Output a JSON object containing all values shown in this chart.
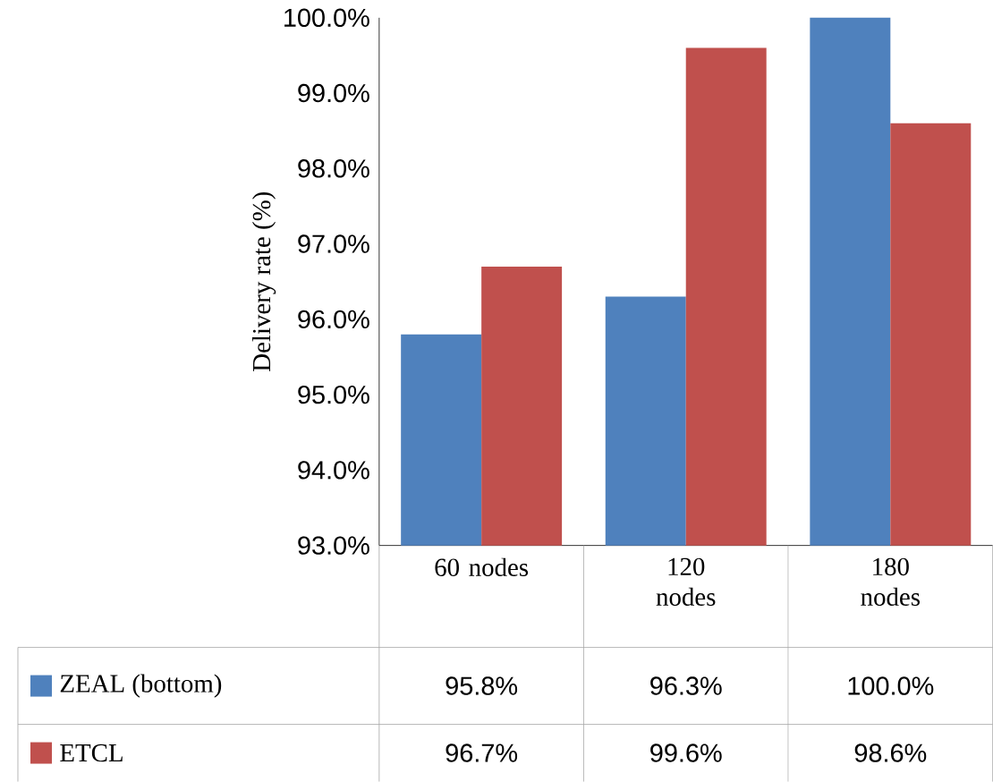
{
  "chart_data": {
    "type": "bar",
    "ylabel": "Delivery rate (%)",
    "categories": [
      "60 nodes",
      "120 nodes",
      "180 nodes"
    ],
    "series": [
      {
        "name": "ZEAL (bottom)",
        "color": "#4f81bd",
        "values": [
          95.8,
          96.3,
          100.0
        ],
        "value_labels": [
          "95.8%",
          "96.3%",
          "100.0%"
        ]
      },
      {
        "name": "ETCL",
        "color": "#c0504d",
        "values": [
          96.7,
          99.6,
          98.6
        ],
        "value_labels": [
          "96.7%",
          "99.6%",
          "98.6%"
        ]
      }
    ],
    "ylim": [
      93,
      100
    ],
    "yticks": [
      {
        "value": 93,
        "label": "93.0%"
      },
      {
        "value": 94,
        "label": "94.0%"
      },
      {
        "value": 95,
        "label": "95.0%"
      },
      {
        "value": 96,
        "label": "96.0%"
      },
      {
        "value": 97,
        "label": "97.0%"
      },
      {
        "value": 98,
        "label": "98.0%"
      },
      {
        "value": 99,
        "label": "99.0%"
      },
      {
        "value": 100,
        "label": "100.0%"
      }
    ],
    "legend": "bottom"
  }
}
